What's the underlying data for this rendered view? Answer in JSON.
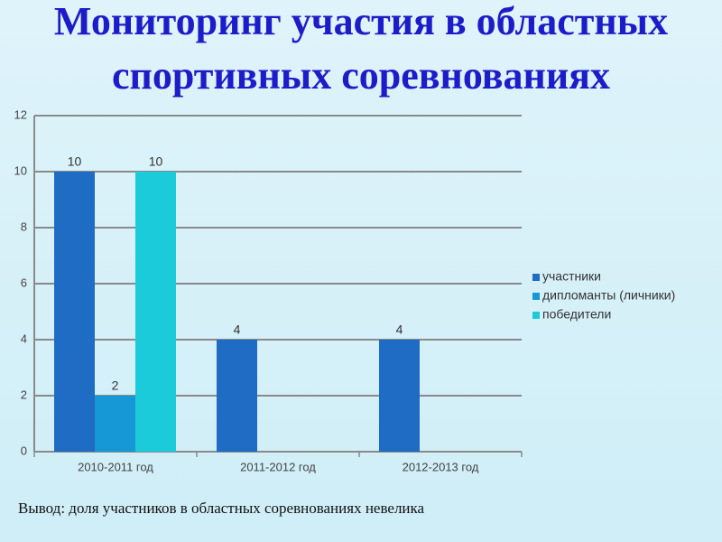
{
  "chart_data": {
    "type": "bar",
    "title": [
      "Мониторинг участия в областных",
      "спортивных соревнованиях"
    ],
    "categories": [
      "2010-2011 год",
      "2011-2012 год",
      "2012-2013 год"
    ],
    "series": [
      {
        "name": "участники",
        "color": "#1f6cc4",
        "values": [
          10,
          4,
          4
        ]
      },
      {
        "name": "дипломанты (личники)",
        "color": "#1798d6",
        "values": [
          2,
          null,
          null
        ]
      },
      {
        "name": "победители",
        "color": "#1ccbd9",
        "values": [
          10,
          null,
          null
        ]
      }
    ],
    "ylim": [
      0,
      12
    ],
    "yticks": [
      0,
      2,
      4,
      6,
      8,
      10,
      12
    ],
    "grid": true,
    "legend": "right"
  },
  "slide": {
    "conclusion": "Вывод: доля участников в областных соревнованиях невелика"
  }
}
